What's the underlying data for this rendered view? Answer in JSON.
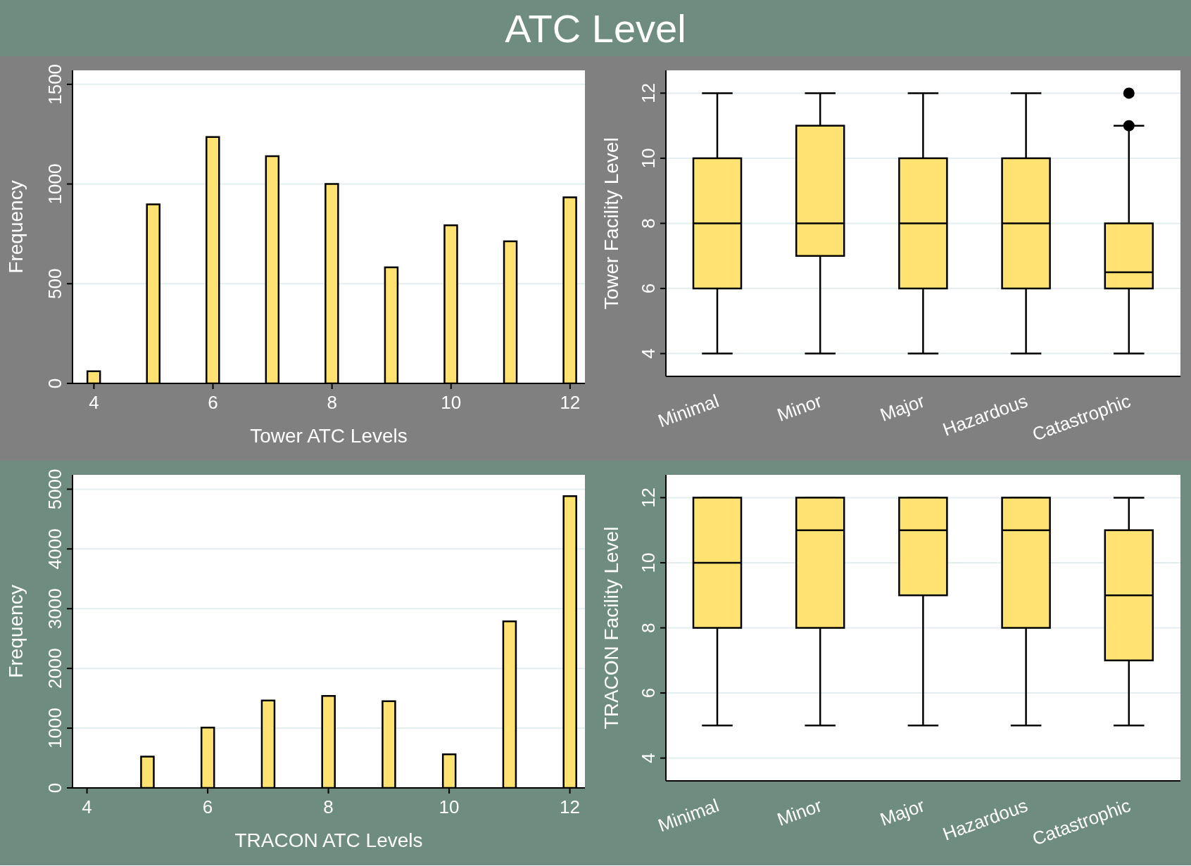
{
  "chart_data": [
    {
      "type": "bar",
      "title": "ATC Level",
      "xlabel": "Tower ATC Levels",
      "ylabel": "Frequency",
      "x": [
        4,
        5,
        6,
        7,
        8,
        9,
        10,
        11,
        12
      ],
      "values": [
        61,
        898,
        1236,
        1140,
        1000,
        582,
        793,
        713,
        933
      ],
      "color": "#ffe272",
      "xlim": [
        3.64,
        12.25
      ],
      "xticks": [
        4,
        6,
        8,
        10,
        12
      ],
      "ylim": [
        0,
        1570
      ],
      "yticks": [
        0,
        500,
        1000,
        1500
      ],
      "grid": "y"
    },
    {
      "type": "box",
      "ylabel": "Tower Facility Level",
      "categories": [
        "Minimal",
        "Minor",
        "Major",
        "Hazardous",
        "Catastrophic"
      ],
      "color": "#ffe272",
      "ylim": [
        3.3,
        12.7
      ],
      "yticks": [
        4,
        6,
        8,
        10,
        12
      ],
      "grid": "y",
      "boxes": [
        {
          "low": 4,
          "q1": 6,
          "median": 8,
          "q3": 10,
          "high": 12
        },
        {
          "low": 4,
          "q1": 7,
          "median": 8,
          "q3": 11,
          "high": 12
        },
        {
          "low": 4,
          "q1": 6,
          "median": 8,
          "q3": 10,
          "high": 12
        },
        {
          "low": 4,
          "q1": 6,
          "median": 8,
          "q3": 10,
          "high": 12
        },
        {
          "low": 4,
          "q1": 6,
          "median": 6.5,
          "q3": 8,
          "high": 11,
          "outliers": [
            11,
            12
          ]
        }
      ]
    },
    {
      "type": "bar",
      "xlabel": "TRACON ATC Levels",
      "ylabel": "Frequency",
      "x": [
        5,
        6,
        7,
        8,
        9,
        10,
        11,
        12
      ],
      "values": [
        524,
        1010,
        1464,
        1541,
        1451,
        563,
        2788,
        4885
      ],
      "color": "#ffe272",
      "xlim": [
        3.76,
        12.25
      ],
      "xticks": [
        4,
        6,
        8,
        10,
        12
      ],
      "ylim": [
        0,
        5240
      ],
      "yticks": [
        0,
        1000,
        2000,
        3000,
        4000,
        5000
      ],
      "grid": "y"
    },
    {
      "type": "box",
      "ylabel": "TRACON Facility Level",
      "categories": [
        "Minimal",
        "Minor",
        "Major",
        "Hazardous",
        "Catastrophic"
      ],
      "color": "#ffe272",
      "ylim": [
        3.3,
        12.7
      ],
      "yticks": [
        4,
        6,
        8,
        10,
        12
      ],
      "grid": "y",
      "boxes": [
        {
          "low": 5,
          "q1": 8,
          "median": 10,
          "q3": 12,
          "high": 12
        },
        {
          "low": 5,
          "q1": 8,
          "median": 11,
          "q3": 12,
          "high": 12
        },
        {
          "low": 5,
          "q1": 9,
          "median": 11,
          "q3": 12,
          "high": 12
        },
        {
          "low": 5,
          "q1": 8,
          "median": 11,
          "q3": 12,
          "high": 12
        },
        {
          "low": 5,
          "q1": 7,
          "median": 9,
          "q3": 11,
          "high": 12
        }
      ]
    }
  ]
}
